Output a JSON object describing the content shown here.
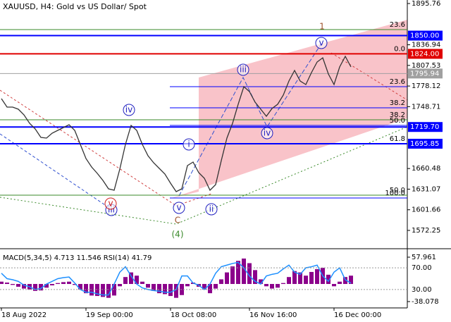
{
  "chart_data": [
    {
      "type": "line",
      "title": "XAUUSD, H4:  Gold vs US Dollar/ Spot",
      "categories": [
        "18 Aug 2022",
        null,
        null,
        null,
        null,
        null,
        null,
        null,
        null,
        null,
        null,
        null,
        null,
        null,
        null,
        "19 Sep 00:00",
        null,
        null,
        null,
        null,
        null,
        null,
        null,
        null,
        null,
        null,
        null,
        null,
        null,
        null,
        "18 Oct 08:00",
        null,
        null,
        null,
        null,
        null,
        null,
        null,
        null,
        null,
        null,
        null,
        null,
        null,
        "16 Nov 16:00",
        null,
        null,
        null,
        null,
        null,
        null,
        null,
        null,
        null,
        null,
        null,
        null,
        null,
        null,
        "16 Dec 00:00",
        null,
        null,
        null
      ],
      "values": [
        1760.13,
        1748.07,
        1748.07,
        1745.06,
        1737.02,
        1724.96,
        1716.92,
        1704.86,
        1703.86,
        1710.89,
        1714.91,
        1718.93,
        1722.95,
        1714.91,
        1694.82,
        1674.73,
        1662.67,
        1653.63,
        1643.58,
        1631.53,
        1629.52,
        1659.66,
        1694.82,
        1721.95,
        1714.91,
        1694.82,
        1678.75,
        1668.71,
        1660.67,
        1652.63,
        1639.56,
        1627.5,
        1631.53,
        1664.68,
        1669.7,
        1654.63,
        1646.6,
        1629.52,
        1637.56,
        1671.71,
        1703.86,
        1724.96,
        1752.09,
        1777.21,
        1770.17,
        1755.1,
        1745.06,
        1735.01,
        1746.06,
        1752.09,
        1765.15,
        1785.24,
        1800.31,
        1785.24,
        1780.22,
        1797.3,
        1812.37,
        1818.4,
        1795.29,
        1780.22,
        1805.34,
        1820.41,
        1805.34
      ],
      "color": "#333333",
      "ylim": [
        1547.13,
        1900.78
      ],
      "yticks": [
        1895.76,
        1836.94,
        1807.53,
        1778.12,
        1748.71,
        1660.48,
        1631.07,
        1601.66,
        1572.25
      ],
      "levels": [
        {
          "value": 1850,
          "label": "1850.00",
          "color": "#0000ff"
        },
        {
          "value": 1824,
          "label": "1824.00",
          "color": "#e00000"
        },
        {
          "value": 1795.94,
          "label": "1795.94",
          "color": "#a0a0a0"
        },
        {
          "value": 1719.7,
          "label": "1719.70",
          "color": "#0000ff"
        },
        {
          "value": 1695.85,
          "label": "1695.85",
          "color": "#0000ff"
        }
      ],
      "fibs": [
        {
          "label": "23.6",
          "value": 1858.59,
          "color": "#3a8a2a"
        },
        {
          "label": "0.0",
          "value": 1824,
          "color": "#e00000"
        },
        {
          "label": "23.6",
          "value": 1777.21,
          "color": "#0000ff"
        },
        {
          "label": "38.2",
          "value": 1747.06,
          "color": "#0000ff"
        },
        {
          "label": "38.2",
          "value": 1729.98,
          "color": "#3a8a2a"
        },
        {
          "label": "50.0",
          "value": 1721.95,
          "color": "#0000ff"
        },
        {
          "label": "61.8",
          "value": 1695.85,
          "color": "#0000ff"
        },
        {
          "label": "50.0",
          "value": 1622.48,
          "color": "#3a8a2a"
        },
        {
          "label": "100.0",
          "value": 1618.46,
          "color": "#0000ff"
        }
      ],
      "waves": [
        {
          "text": "1",
          "color": "#a0522d",
          "circled": false
        },
        {
          "text": "v",
          "color": "#2020c0",
          "circled": true
        },
        {
          "text": "iii",
          "color": "#2020c0",
          "circled": true
        },
        {
          "text": "iv",
          "color": "#2020c0",
          "circled": true
        },
        {
          "text": "i",
          "color": "#2020c0",
          "circled": true
        },
        {
          "text": "v",
          "color": "#2020c0",
          "circled": true
        },
        {
          "text": "ii",
          "color": "#2020c0",
          "circled": true
        },
        {
          "text": "iv",
          "color": "#2020c0",
          "circled": true
        },
        {
          "text": "iii",
          "color": "#2020c0",
          "circled": true
        },
        {
          "text": "v",
          "color": "#d02020",
          "circled": true
        },
        {
          "text": "C",
          "color": "#a0522d",
          "circled": false
        },
        {
          "text": "(4)",
          "color": "#3a8a2a",
          "circled": false
        }
      ]
    },
    {
      "type": "bar",
      "title": "MACD(5,34,5) 4.713 11.546 RSI(14) 41.79",
      "ylim": [
        -38.078,
        57.961
      ],
      "yticks": [
        57.961,
        -38.078
      ],
      "y2lim": [
        0,
        100
      ],
      "y2ticks": [
        {
          "value": 70,
          "label": "70.00"
        },
        {
          "value": 30,
          "label": "30.00"
        }
      ],
      "series": [
        {
          "color": "#8b008b",
          "values": [
            5,
            3,
            -2,
            -6,
            -10,
            -12,
            -15,
            -14,
            -8,
            -3,
            2,
            4,
            5,
            -2,
            -12,
            -20,
            -25,
            -26,
            -28,
            -30,
            -25,
            -5,
            15,
            25,
            18,
            5,
            -8,
            -15,
            -20,
            -22,
            -26,
            -30,
            -24,
            -5,
            3,
            -6,
            -12,
            -20,
            -10,
            10,
            25,
            38,
            50,
            55,
            45,
            30,
            10,
            -5,
            -10,
            -8,
            2,
            15,
            28,
            25,
            18,
            26,
            32,
            35,
            20,
            -5,
            5,
            15,
            18
          ]
        },
        {
          "color": "#1e90ff",
          "axis": "y2",
          "values": [
            60,
            50,
            48,
            45,
            38,
            35,
            30,
            32,
            40,
            45,
            50,
            52,
            53,
            42,
            30,
            25,
            25,
            22,
            20,
            20,
            40,
            62,
            72,
            55,
            40,
            33,
            30,
            28,
            27,
            25,
            25,
            30,
            55,
            55,
            42,
            38,
            30,
            40,
            60,
            72,
            75,
            78,
            80,
            70,
            55,
            45,
            40,
            55,
            58,
            60,
            68,
            75,
            62,
            58,
            70,
            72,
            75,
            55,
            45,
            62,
            70,
            48,
            41.79
          ]
        }
      ]
    }
  ]
}
